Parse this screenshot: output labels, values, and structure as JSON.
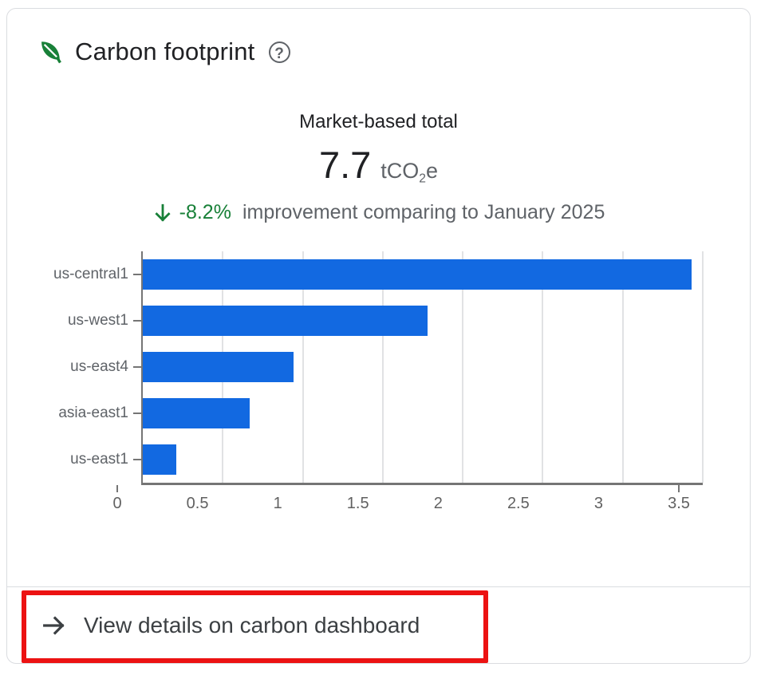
{
  "card": {
    "title": "Carbon footprint",
    "help_glyph": "?",
    "total_label": "Market-based total",
    "total_value": "7.7",
    "unit": {
      "prefix": "tCO",
      "sub": "2",
      "suffix": "e"
    },
    "improvement": {
      "delta": "-8.2%",
      "text": "improvement comparing to January 2025"
    },
    "footer_link_label": "View details on carbon dashboard"
  },
  "chart_data": {
    "type": "bar",
    "orientation": "horizontal",
    "categories": [
      "us-central1",
      "us-west1",
      "us-east4",
      "asia-east1",
      "us-east1"
    ],
    "values": [
      3.43,
      1.78,
      0.94,
      0.67,
      0.21
    ],
    "x_ticks": [
      "0",
      "0.5",
      "1",
      "1.5",
      "2",
      "2.5",
      "3",
      "3.5"
    ],
    "xlim": [
      0,
      3.5
    ],
    "grid": true,
    "legend": "none",
    "bar_color": "#1269e1"
  },
  "colors": {
    "accent_blue": "#1269e1",
    "leaf_green": "#188038",
    "improvement_green": "#188038",
    "text_dark": "#202124",
    "text_gray": "#5f6368",
    "card_border": "#dadce0",
    "annotation_red": "#ec1212"
  }
}
